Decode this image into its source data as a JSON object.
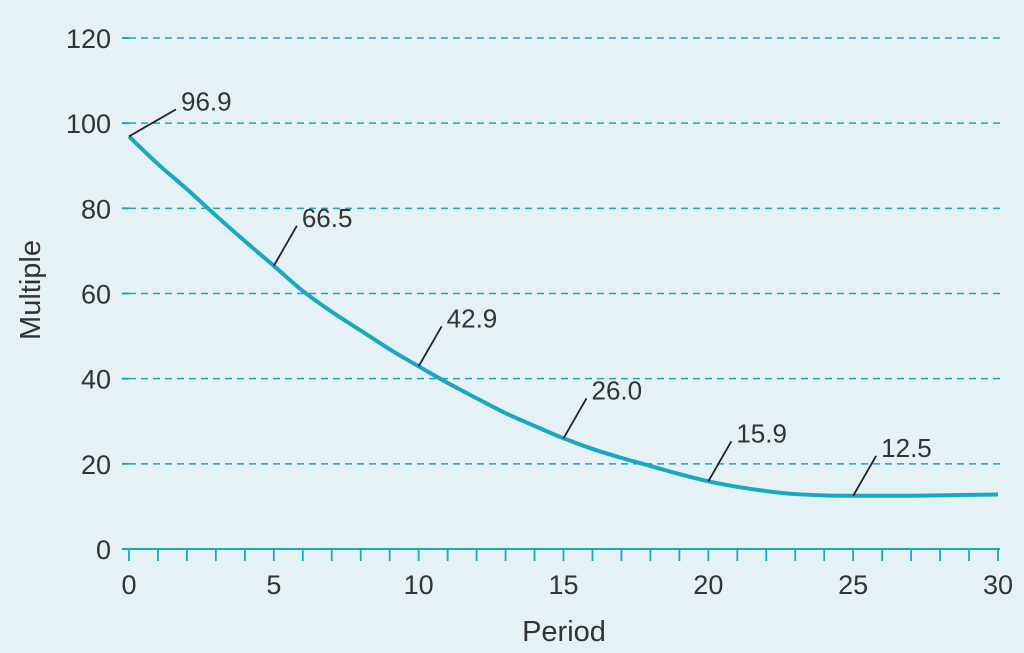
{
  "chart_data": {
    "type": "line",
    "title": "",
    "xlabel": "Period",
    "ylabel": "Multiple",
    "xlim": [
      0,
      30
    ],
    "ylim": [
      0,
      120
    ],
    "xticks": [
      0,
      5,
      10,
      15,
      20,
      25,
      30
    ],
    "yticks": [
      0,
      20,
      40,
      60,
      80,
      100,
      120
    ],
    "grid": "horizontal-dashed",
    "line_color": "#17a9c2",
    "grid_color": "#17a9c2",
    "series": [
      {
        "name": "Multiple",
        "x": [
          0,
          1,
          2,
          3,
          4,
          5,
          6,
          7,
          8,
          9,
          10,
          11,
          12,
          13,
          14,
          15,
          16,
          17,
          18,
          19,
          20,
          21,
          22,
          23,
          24,
          25,
          26,
          27,
          28,
          29,
          30
        ],
        "values": [
          96.9,
          90.4,
          84.5,
          78.3,
          72.3,
          66.5,
          60.6,
          55.7,
          51.3,
          46.9,
          42.9,
          39.0,
          35.4,
          31.9,
          28.9,
          26.0,
          23.5,
          21.4,
          19.5,
          17.6,
          15.9,
          14.6,
          13.6,
          12.9,
          12.6,
          12.5,
          12.5,
          12.5,
          12.6,
          12.7,
          12.8
        ]
      }
    ],
    "annotations": [
      {
        "label": "96.9",
        "x": 0,
        "y": 96.9
      },
      {
        "label": "66.5",
        "x": 5,
        "y": 66.5
      },
      {
        "label": "42.9",
        "x": 10,
        "y": 42.9
      },
      {
        "label": "26.0",
        "x": 15,
        "y": 26.0
      },
      {
        "label": "15.9",
        "x": 20,
        "y": 15.9
      },
      {
        "label": "12.5",
        "x": 25,
        "y": 12.5
      }
    ]
  }
}
